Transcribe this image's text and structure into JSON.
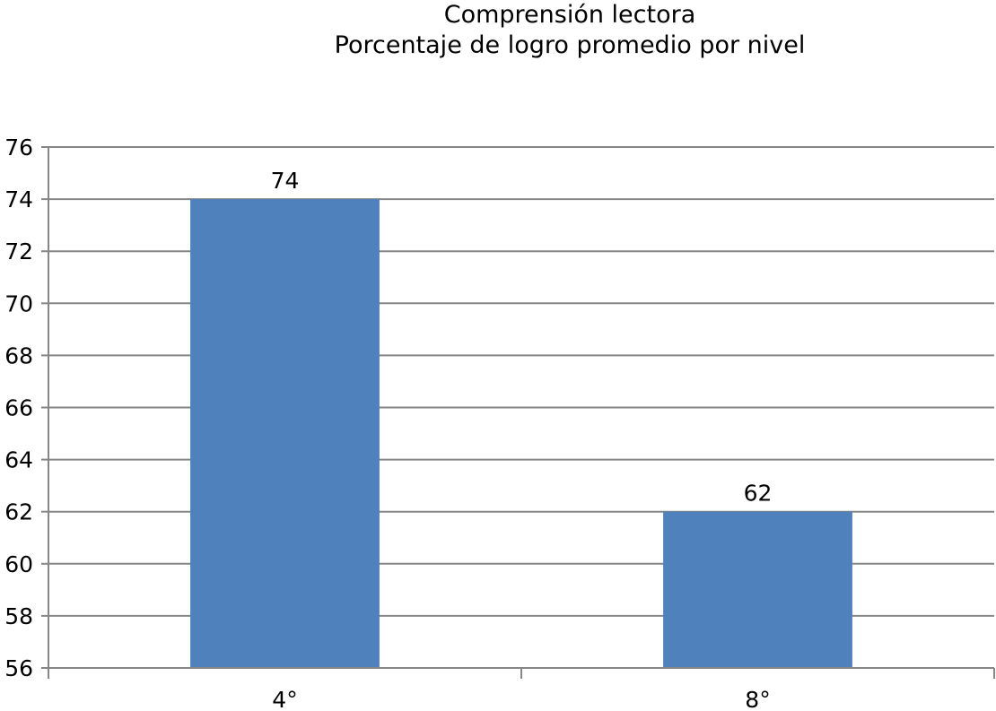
{
  "chart_data": {
    "type": "bar",
    "title": "Comprensión lectora",
    "subtitle": "Porcentaje de logro promedio por nivel",
    "categories": [
      "4°",
      "8°"
    ],
    "values": [
      74,
      62
    ],
    "data_labels": [
      "74",
      "62"
    ],
    "xlabel": "",
    "ylabel": "",
    "ylim": [
      56,
      76
    ],
    "yticks": [
      56,
      58,
      60,
      62,
      64,
      66,
      68,
      70,
      72,
      74,
      76
    ],
    "grid": true,
    "legend": "none",
    "colors": {
      "bar": "#4f81bd",
      "grid": "#868686",
      "axis": "#868686"
    }
  }
}
